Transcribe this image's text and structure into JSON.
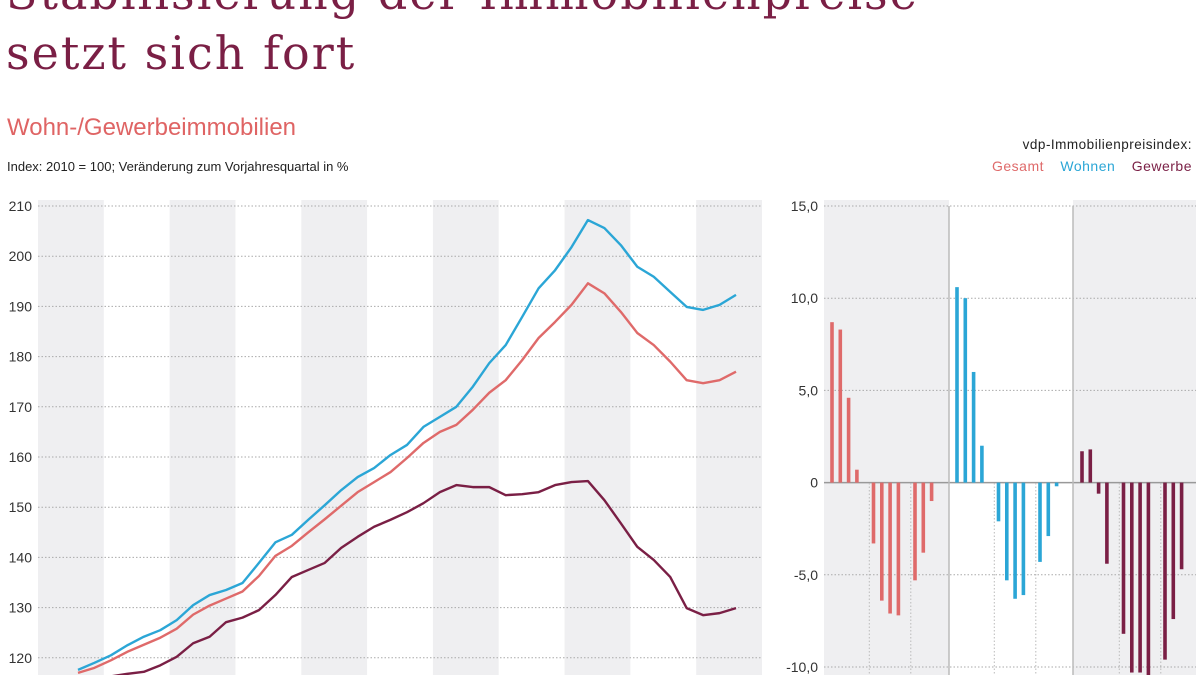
{
  "header": {
    "title_line1": "Stabilisierung der Immobilienpreise",
    "title_line2": "setzt sich fort",
    "subtitle": "Wohn-/Gewerbeimmobilien",
    "note": "Index: 2010 = 100; Veränderung zum Vorjahresquartal in %"
  },
  "legend": {
    "heading": "vdp-Immobilienpreisindex:",
    "items": [
      "Gesamt",
      "Wohnen",
      "Gewerbe"
    ]
  },
  "colors": {
    "Gesamt": "#df6a6a",
    "Wohnen": "#2ba6d6",
    "Gewerbe": "#7a1f45",
    "title": "#7a1f45",
    "band": "#efeff1"
  },
  "chart_data": [
    {
      "type": "line",
      "ylabel": "",
      "ylim": [
        116,
        210
      ],
      "yticks": [
        120,
        130,
        140,
        150,
        160,
        170,
        180,
        190,
        200,
        210
      ],
      "grid": true,
      "series": [
        {
          "name": "Gesamt",
          "values": [
            117.0,
            118.0,
            119.5,
            121.2,
            122.6,
            124.0,
            125.8,
            128.6,
            130.4,
            131.8,
            133.2,
            136.3,
            140.3,
            142.3,
            145.0,
            147.6,
            150.3,
            153.0,
            155.0,
            157.0,
            159.8,
            162.8,
            165.0,
            166.4,
            169.4,
            172.8,
            175.3,
            179.3,
            183.7,
            186.9,
            190.3,
            194.6,
            192.6,
            188.9,
            184.7,
            182.3,
            179.0,
            175.3,
            174.7,
            175.3,
            177.0
          ]
        },
        {
          "name": "Wohnen",
          "values": [
            117.6,
            119.0,
            120.5,
            122.5,
            124.2,
            125.5,
            127.5,
            130.5,
            132.5,
            133.5,
            134.9,
            138.9,
            143.0,
            144.5,
            147.5,
            150.4,
            153.4,
            156.0,
            157.8,
            160.4,
            162.4,
            166.0,
            168.0,
            170.0,
            174.0,
            178.7,
            182.3,
            187.9,
            193.6,
            197.2,
            201.8,
            207.2,
            205.6,
            202.2,
            197.9,
            195.9,
            192.9,
            189.9,
            189.3,
            190.3,
            192.3
          ]
        },
        {
          "name": "Gewerbe",
          "values": [
            114.5,
            115.5,
            116.3,
            116.8,
            117.2,
            118.5,
            120.2,
            122.9,
            124.2,
            127.1,
            128.0,
            129.5,
            132.5,
            136.1,
            137.5,
            138.9,
            141.9,
            144.1,
            146.1,
            147.5,
            149.0,
            150.8,
            153.0,
            154.4,
            154.0,
            154.0,
            152.4,
            152.6,
            153.0,
            154.4,
            155.0,
            155.2,
            151.4,
            146.8,
            142.1,
            139.5,
            136.1,
            129.9,
            128.5,
            128.9,
            129.9
          ]
        }
      ]
    },
    {
      "type": "bar",
      "ylim": [
        -10,
        15
      ],
      "yticks": [
        15,
        10,
        5,
        0,
        -5,
        -10
      ],
      "ytick_labels": [
        "15,0",
        "10,0",
        "5,0",
        "0",
        "-5,0",
        "-10,0"
      ],
      "grid": true,
      "series": [
        {
          "name": "Gesamt",
          "groups": [
            [
              8.7,
              8.3,
              4.6,
              0.7
            ],
            [
              -3.3,
              -6.4,
              -7.1,
              -7.2
            ],
            [
              -5.3,
              -3.8,
              -1.0
            ]
          ]
        },
        {
          "name": "Wohnen",
          "groups": [
            [
              10.6,
              10.0,
              6.0,
              2.0
            ],
            [
              -2.1,
              -5.3,
              -6.3,
              -6.1
            ],
            [
              -4.3,
              -2.9,
              -0.2
            ]
          ]
        },
        {
          "name": "Gewerbe",
          "groups": [
            [
              1.7,
              1.8,
              -0.6,
              -4.4
            ],
            [
              -8.2,
              -10.3,
              -10.3,
              -10.5
            ],
            [
              -9.6,
              -7.4,
              -4.7
            ]
          ]
        }
      ]
    }
  ]
}
